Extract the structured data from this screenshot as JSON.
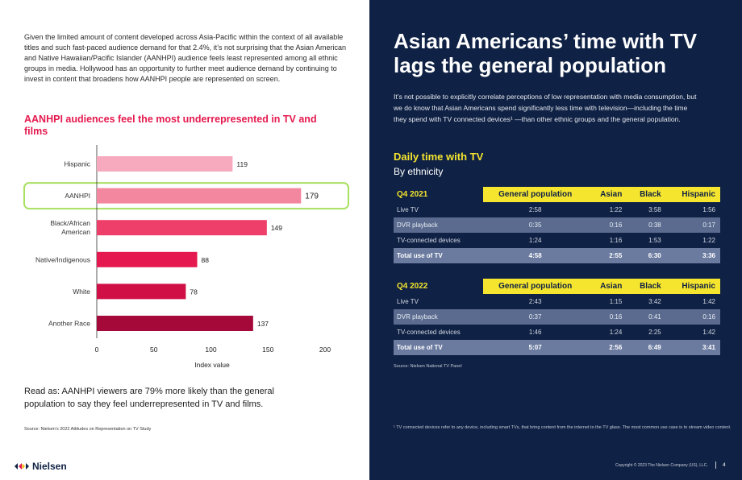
{
  "intro": "Given the limited amount of content developed across Asia-Pacific within the context of all available titles and such fast-paced audience demand for that 2.4%, it’s not surprising that the Asian American and Native Hawaiian/Pacific Islander (AANHPI) audience feels least represented among all ethnic groups in media. Hollywood has an opportunity to further meet audience demand by continuing to invest in content that broadens how AANHPI people are represented on screen.",
  "chart_data": {
    "type": "bar",
    "orientation": "horizontal",
    "title": "AANHPI audiences feel the most underrepresented in TV and films",
    "categories": [
      "Hispanic",
      "AANHPI",
      "Black/African American",
      "Native/Indigenous",
      "White",
      "Another Race"
    ],
    "category_lines": [
      [
        "Hispanic"
      ],
      [
        "AANHPI"
      ],
      [
        "Black/African",
        "American"
      ],
      [
        "Native/Indigenous"
      ],
      [
        "White"
      ],
      [
        "Another Race"
      ]
    ],
    "values": [
      119,
      179,
      149,
      88,
      78,
      137
    ],
    "colors": [
      "#f7a9bd",
      "#f2879f",
      "#ee3e6a",
      "#e5194f",
      "#cf0f45",
      "#a5093a"
    ],
    "highlight": "AANHPI",
    "highlight_color": "#a8e05f",
    "xlabel": "Index value",
    "ylabel": "",
    "xlim": [
      0,
      200
    ],
    "xticks": [
      0,
      50,
      100,
      150,
      200
    ],
    "grid": false
  },
  "read_as": "Read as: AANHPI viewers are 79% more likely than the general population to say they feel underrepresented in TV and films.",
  "source_left": "Source: Nielsen’s 2022 Attitudes on Representation on TV Study",
  "logo": {
    "text": "Nielsen"
  },
  "headline": "Asian Americans’ time with TV lags the general population",
  "right_intro": "It’s not possible to explicitly correlate perceptions of low representation with media consumption, but we do know that Asian Americans spend significantly less time with television—including the time they spend with TV connected devices¹ —than other ethnic groups and the general population.",
  "daily": {
    "title": "Daily time with TV",
    "subtitle": "By ethnicity"
  },
  "tables": [
    {
      "quarter": "Q4 2021",
      "headers": [
        "General population",
        "Asian",
        "Black",
        "Hispanic"
      ],
      "rows": [
        {
          "label": "Live TV",
          "values": [
            "2:58",
            "1:22",
            "3:58",
            "1:56"
          ]
        },
        {
          "label": "DVR playback",
          "values": [
            "0:35",
            "0:16",
            "0:38",
            "0:17"
          ]
        },
        {
          "label": "TV-connected devices",
          "values": [
            "1:24",
            "1:16",
            "1:53",
            "1:22"
          ]
        },
        {
          "label": "Total use of TV",
          "values": [
            "4:58",
            "2:55",
            "6:30",
            "3:36"
          ]
        }
      ]
    },
    {
      "quarter": "Q4 2022",
      "headers": [
        "General population",
        "Asian",
        "Black",
        "Hispanic"
      ],
      "rows": [
        {
          "label": "Live TV",
          "values": [
            "2:43",
            "1:15",
            "3:42",
            "1:42"
          ]
        },
        {
          "label": "DVR playback",
          "values": [
            "0:37",
            "0:16",
            "0:41",
            "0:16"
          ]
        },
        {
          "label": "TV-connected devices",
          "values": [
            "1:46",
            "1:24",
            "2:25",
            "1:42"
          ]
        },
        {
          "label": "Total use of TV",
          "values": [
            "5:07",
            "2:56",
            "6:49",
            "3:41"
          ]
        }
      ]
    }
  ],
  "source_right": "Source: Nielsen National TV Panel",
  "footnote": "¹ TV connected devices refer to any device, including smart TVs, that bring content from the internet to the TV glass. The most common use case is to stream video content.",
  "copyright": "Copyright © 2023 The Nielsen Company (US), LLC.",
  "page_number": "4"
}
